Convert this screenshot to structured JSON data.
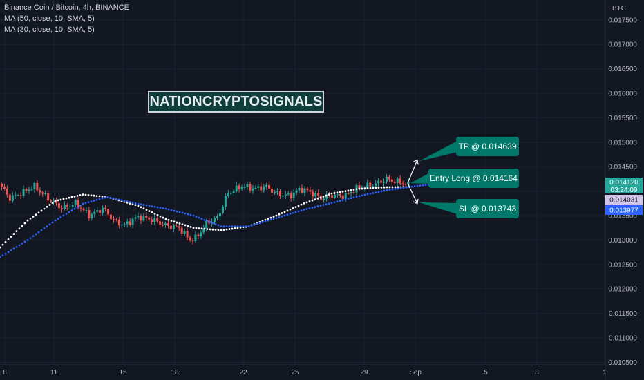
{
  "header": {
    "symbol": "Binance Coin / Bitcoin, 4h, BINANCE",
    "ma1": "MA (50, close, 10, SMA, 5)",
    "ma2": "MA (30, close, 10, SMA, 5)"
  },
  "watermark": "NATIONCRYPTOSIGNALS",
  "colors": {
    "background": "#131722",
    "up": "#26a69a",
    "down": "#ef5350",
    "ma50": "#ffffff",
    "ma30": "#2962ff",
    "callout": "#00796b",
    "price_tag": "#26a69a",
    "bid_tag": "#d1c4e9",
    "ma_tag": "#2962ff"
  },
  "callouts": {
    "tp": "TP @ 0.014639",
    "entry": "Entry Long @ 0.014164",
    "sl": "SL @ 0.013743"
  },
  "chart_data": {
    "type": "candlestick",
    "currency": "BTC",
    "ylim": [
      0.01045,
      0.01785
    ],
    "y_ticks": [
      "0.017500",
      "0.017000",
      "0.016500",
      "0.016000",
      "0.015500",
      "0.015000",
      "0.014500",
      "0.014000",
      "0.013500",
      "0.013000",
      "0.012500",
      "0.012000",
      "0.011500",
      "0.011000",
      "0.010500"
    ],
    "x_ticks": [
      "8",
      "11",
      "15",
      "18",
      "22",
      "25",
      "29",
      "Sep",
      "5",
      "8",
      "1"
    ],
    "price_tags": {
      "last": "0.014120",
      "countdown": "03:24:09",
      "bid": "0.014031",
      "ma": "0.013977"
    },
    "levels": {
      "tp": 0.014639,
      "entry": 0.014164,
      "sl": 0.013743
    },
    "ma50_anchors": [
      [
        0,
        0.01285
      ],
      [
        40,
        0.0134
      ],
      [
        80,
        0.0138
      ],
      [
        120,
        0.01393
      ],
      [
        155,
        0.01388
      ],
      [
        200,
        0.0137
      ],
      [
        240,
        0.01343
      ],
      [
        280,
        0.01325
      ],
      [
        320,
        0.0132
      ],
      [
        360,
        0.01328
      ],
      [
        400,
        0.0135
      ],
      [
        440,
        0.01375
      ],
      [
        480,
        0.01395
      ],
      [
        520,
        0.01405
      ],
      [
        560,
        0.01408
      ],
      [
        590,
        0.01408
      ]
    ],
    "ma30_anchors": [
      [
        0,
        0.01265
      ],
      [
        40,
        0.013
      ],
      [
        80,
        0.0134
      ],
      [
        120,
        0.01374
      ],
      [
        155,
        0.01388
      ],
      [
        200,
        0.01374
      ],
      [
        240,
        0.01364
      ],
      [
        280,
        0.0135
      ],
      [
        320,
        0.01328
      ],
      [
        360,
        0.01328
      ],
      [
        400,
        0.01345
      ],
      [
        440,
        0.01362
      ],
      [
        480,
        0.01376
      ],
      [
        520,
        0.0139
      ],
      [
        560,
        0.01402
      ],
      [
        600,
        0.0141
      ],
      [
        630,
        0.01415
      ]
    ],
    "price_path": [
      [
        0,
        0.01415
      ],
      [
        15,
        0.01385
      ],
      [
        30,
        0.01395
      ],
      [
        50,
        0.0141
      ],
      [
        70,
        0.01385
      ],
      [
        90,
        0.01365
      ],
      [
        110,
        0.01375
      ],
      [
        130,
        0.0135
      ],
      [
        150,
        0.01365
      ],
      [
        165,
        0.0134
      ],
      [
        180,
        0.0133
      ],
      [
        200,
        0.01348
      ],
      [
        220,
        0.01342
      ],
      [
        240,
        0.0133
      ],
      [
        260,
        0.01325
      ],
      [
        275,
        0.013
      ],
      [
        285,
        0.01305
      ],
      [
        300,
        0.01335
      ],
      [
        315,
        0.01345
      ],
      [
        330,
        0.01395
      ],
      [
        350,
        0.0141
      ],
      [
        370,
        0.01405
      ],
      [
        385,
        0.0141
      ],
      [
        400,
        0.01395
      ],
      [
        420,
        0.0139
      ],
      [
        435,
        0.01405
      ],
      [
        450,
        0.01398
      ],
      [
        465,
        0.01385
      ],
      [
        480,
        0.01392
      ],
      [
        500,
        0.0139
      ],
      [
        515,
        0.01405
      ],
      [
        530,
        0.0141
      ],
      [
        545,
        0.01415
      ],
      [
        560,
        0.01425
      ],
      [
        570,
        0.0142
      ],
      [
        580,
        0.01418
      ],
      [
        592,
        0.01412
      ]
    ]
  }
}
